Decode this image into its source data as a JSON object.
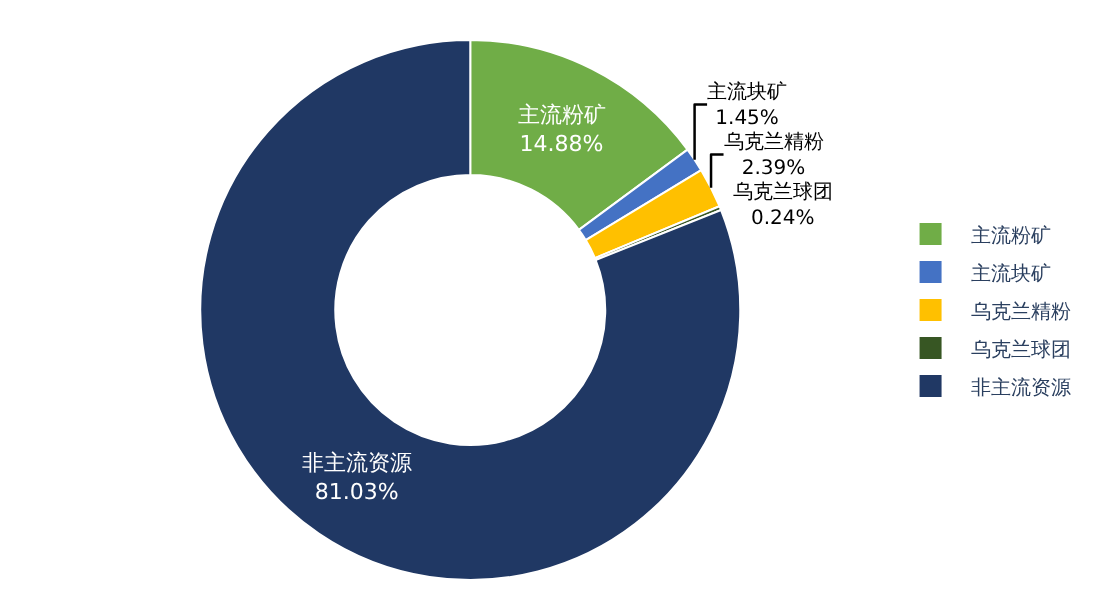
{
  "chart_data": {
    "type": "donut",
    "categories": [
      "主流粉矿",
      "主流块矿",
      "乌克兰精粉",
      "乌克兰球团",
      "非主流资源"
    ],
    "values": [
      14.88,
      1.45,
      2.39,
      0.24,
      81.03
    ],
    "value_labels": [
      "14.88%",
      "1.45%",
      "2.39%",
      "0.24%",
      "81.03%"
    ],
    "colors": [
      "#70ad47",
      "#4472c4",
      "#ffc000",
      "#375623",
      "#203864"
    ],
    "legend": "right"
  }
}
